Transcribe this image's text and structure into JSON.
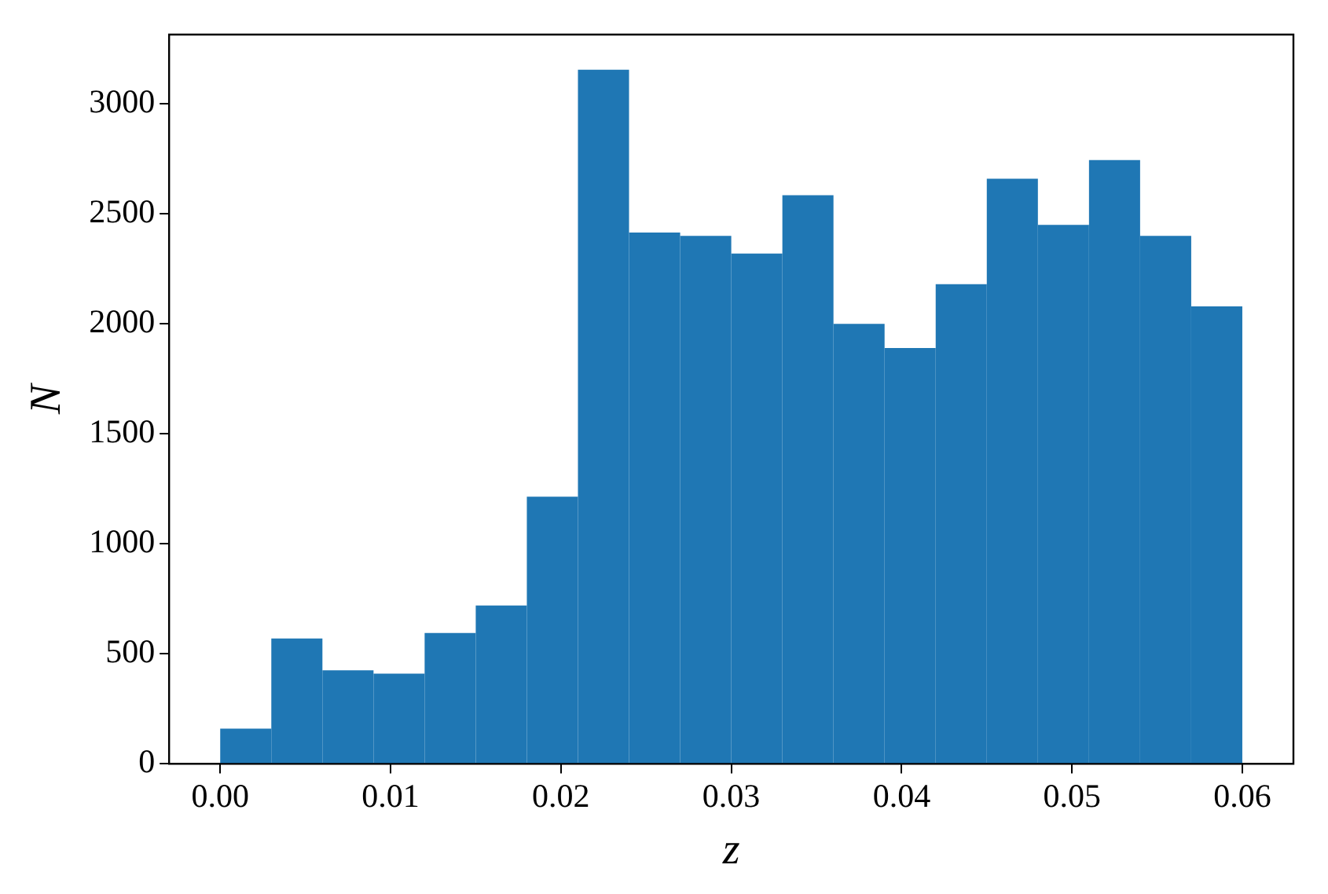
{
  "chart_data": {
    "type": "histogram",
    "xlabel": "z",
    "ylabel": "N",
    "bins": [
      0,
      0.003,
      0.006,
      0.009,
      0.012,
      0.015,
      0.018,
      0.021,
      0.024,
      0.027,
      0.03,
      0.033,
      0.036,
      0.039,
      0.042,
      0.045,
      0.048,
      0.051,
      0.054,
      0.057,
      0.06
    ],
    "values": [
      160,
      570,
      425,
      410,
      595,
      720,
      1215,
      3155,
      2415,
      2400,
      2320,
      2585,
      2000,
      1890,
      2180,
      2660,
      2450,
      2745,
      2400,
      2080
    ],
    "color": "#1f77b4",
    "xlim": [
      -0.003,
      0.063
    ],
    "ylim": [
      0,
      3315
    ],
    "xticks": [
      {
        "value": 0,
        "label": "0.00"
      },
      {
        "value": 0.01,
        "label": "0.01"
      },
      {
        "value": 0.02,
        "label": "0.02"
      },
      {
        "value": 0.03,
        "label": "0.03"
      },
      {
        "value": 0.04,
        "label": "0.04"
      },
      {
        "value": 0.05,
        "label": "0.05"
      },
      {
        "value": 0.06,
        "label": "0.06"
      }
    ],
    "yticks": [
      0,
      500,
      1000,
      1500,
      2000,
      2500,
      3000
    ],
    "grid": false,
    "legend": false
  }
}
